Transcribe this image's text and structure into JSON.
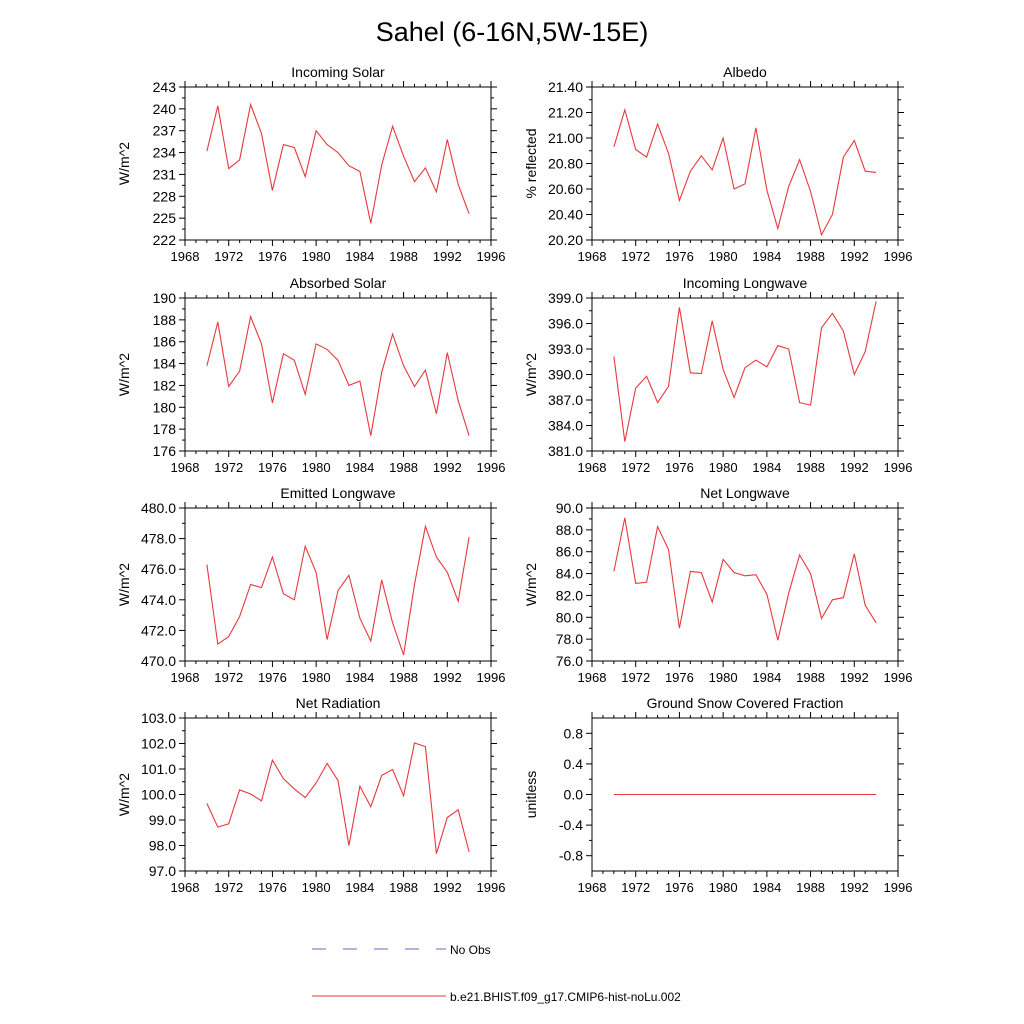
{
  "figure": {
    "title": "Sahel (6-16N,5W-15E)",
    "legend": [
      {
        "label": "No Obs",
        "color": "#6a6ab8",
        "dash": true
      },
      {
        "label": "b.e21.BHIST.f09_g17.CMIP6-hist-noLu.002",
        "color": "#e8383d",
        "dash": false
      }
    ]
  },
  "chart_data": [
    {
      "type": "line",
      "title": "Incoming Solar",
      "ylabel": "W/m^2",
      "xlim": [
        1968,
        1996
      ],
      "xticks": [
        1968,
        1972,
        1976,
        1980,
        1984,
        1988,
        1992,
        1996
      ],
      "ylim": [
        222,
        243
      ],
      "yticks": [
        222,
        225,
        228,
        231,
        234,
        237,
        240,
        243
      ],
      "ytick_labels": [
        "222",
        "225",
        "228",
        "231",
        "234",
        "237",
        "240",
        "243"
      ],
      "x": [
        1970,
        1971,
        1972,
        1973,
        1974,
        1975,
        1976,
        1977,
        1978,
        1979,
        1980,
        1981,
        1982,
        1983,
        1984,
        1985,
        1986,
        1987,
        1988,
        1989,
        1990,
        1991,
        1992,
        1993,
        1994
      ],
      "series": [
        {
          "name": "b.e21.BHIST.f09_g17.CMIP6-hist-noLu.002",
          "color": "#e8383d",
          "values": [
            234.2,
            240.4,
            231.8,
            233.0,
            240.6,
            236.6,
            228.8,
            235.1,
            234.7,
            230.7,
            237.0,
            235.1,
            234.0,
            232.2,
            231.4,
            224.3,
            232.3,
            237.6,
            233.5,
            230.0,
            231.9,
            228.6,
            235.8,
            229.6,
            225.6
          ]
        }
      ]
    },
    {
      "type": "line",
      "title": "Albedo",
      "ylabel": "% reflected",
      "xlim": [
        1968,
        1996
      ],
      "xticks": [
        1968,
        1972,
        1976,
        1980,
        1984,
        1988,
        1992,
        1996
      ],
      "ylim": [
        20.2,
        21.4
      ],
      "yticks": [
        20.2,
        20.4,
        20.6,
        20.8,
        21.0,
        21.2,
        21.4
      ],
      "ytick_labels": [
        "20.20",
        "20.40",
        "20.60",
        "20.80",
        "21.00",
        "21.20",
        "21.40"
      ],
      "x": [
        1970,
        1971,
        1972,
        1973,
        1974,
        1975,
        1976,
        1977,
        1978,
        1979,
        1980,
        1981,
        1982,
        1983,
        1984,
        1985,
        1986,
        1987,
        1988,
        1989,
        1990,
        1991,
        1992,
        1993,
        1994
      ],
      "series": [
        {
          "name": "b.e21.BHIST.f09_g17.CMIP6-hist-noLu.002",
          "color": "#e8383d",
          "values": [
            20.93,
            21.22,
            20.91,
            20.85,
            21.11,
            20.88,
            20.51,
            20.74,
            20.86,
            20.75,
            21.0,
            20.6,
            20.64,
            21.08,
            20.59,
            20.29,
            20.62,
            20.83,
            20.58,
            20.24,
            20.4,
            20.85,
            20.98,
            20.74,
            20.73
          ]
        }
      ]
    },
    {
      "type": "line",
      "title": "Absorbed Solar",
      "ylabel": "W/m^2",
      "xlim": [
        1968,
        1996
      ],
      "xticks": [
        1968,
        1972,
        1976,
        1980,
        1984,
        1988,
        1992,
        1996
      ],
      "ylim": [
        176,
        190
      ],
      "yticks": [
        176,
        178,
        180,
        182,
        184,
        186,
        188,
        190
      ],
      "ytick_labels": [
        "176",
        "178",
        "180",
        "182",
        "184",
        "186",
        "188",
        "190"
      ],
      "x": [
        1970,
        1971,
        1972,
        1973,
        1974,
        1975,
        1976,
        1977,
        1978,
        1979,
        1980,
        1981,
        1982,
        1983,
        1984,
        1985,
        1986,
        1987,
        1988,
        1989,
        1990,
        1991,
        1992,
        1993,
        1994
      ],
      "series": [
        {
          "name": "b.e21.BHIST.f09_g17.CMIP6-hist-noLu.002",
          "color": "#e8383d",
          "values": [
            183.8,
            187.8,
            181.9,
            183.3,
            188.3,
            185.8,
            180.4,
            184.9,
            184.3,
            181.2,
            185.8,
            185.3,
            184.3,
            182.0,
            182.4,
            177.4,
            183.2,
            186.7,
            183.8,
            181.9,
            183.4,
            179.4,
            185.0,
            180.6,
            177.4
          ]
        }
      ]
    },
    {
      "type": "line",
      "title": "Incoming Longwave",
      "ylabel": "W/m^2",
      "xlim": [
        1968,
        1996
      ],
      "xticks": [
        1968,
        1972,
        1976,
        1980,
        1984,
        1988,
        1992,
        1996
      ],
      "ylim": [
        381.0,
        399.0
      ],
      "yticks": [
        381,
        384,
        387,
        390,
        393,
        396,
        399
      ],
      "ytick_labels": [
        "381.0",
        "384.0",
        "387.0",
        "390.0",
        "393.0",
        "396.0",
        "399.0"
      ],
      "x": [
        1970,
        1971,
        1972,
        1973,
        1974,
        1975,
        1976,
        1977,
        1978,
        1979,
        1980,
        1981,
        1982,
        1983,
        1984,
        1985,
        1986,
        1987,
        1988,
        1989,
        1990,
        1991,
        1992,
        1993,
        1994
      ],
      "series": [
        {
          "name": "b.e21.BHIST.f09_g17.CMIP6-hist-noLu.002",
          "color": "#e8383d",
          "values": [
            392.1,
            382.1,
            388.4,
            389.8,
            386.7,
            388.6,
            397.9,
            390.2,
            390.1,
            396.3,
            390.6,
            387.3,
            390.8,
            391.7,
            390.9,
            393.4,
            393.0,
            386.7,
            386.4,
            395.5,
            397.2,
            395.1,
            390.0,
            392.7,
            398.6
          ]
        }
      ]
    },
    {
      "type": "line",
      "title": "Emitted Longwave",
      "ylabel": "W/m^2",
      "xlim": [
        1968,
        1996
      ],
      "xticks": [
        1968,
        1972,
        1976,
        1980,
        1984,
        1988,
        1992,
        1996
      ],
      "ylim": [
        470.0,
        480.0
      ],
      "yticks": [
        470,
        472,
        474,
        476,
        478,
        480
      ],
      "ytick_labels": [
        "470.0",
        "472.0",
        "474.0",
        "476.0",
        "478.0",
        "480.0"
      ],
      "x": [
        1970,
        1971,
        1972,
        1973,
        1974,
        1975,
        1976,
        1977,
        1978,
        1979,
        1980,
        1981,
        1982,
        1983,
        1984,
        1985,
        1986,
        1987,
        1988,
        1989,
        1990,
        1991,
        1992,
        1993,
        1994
      ],
      "series": [
        {
          "name": "b.e21.BHIST.f09_g17.CMIP6-hist-noLu.002",
          "color": "#e8383d",
          "values": [
            476.3,
            471.1,
            471.6,
            472.9,
            475.0,
            474.8,
            476.8,
            474.4,
            474.0,
            477.5,
            475.8,
            471.4,
            474.6,
            475.6,
            472.8,
            471.3,
            475.3,
            472.5,
            470.4,
            475.0,
            478.8,
            476.8,
            475.8,
            473.9,
            478.1
          ]
        }
      ]
    },
    {
      "type": "line",
      "title": "Net Longwave",
      "ylabel": "W/m^2",
      "xlim": [
        1968,
        1996
      ],
      "xticks": [
        1968,
        1972,
        1976,
        1980,
        1984,
        1988,
        1992,
        1996
      ],
      "ylim": [
        76.0,
        90.0
      ],
      "yticks": [
        76,
        78,
        80,
        82,
        84,
        86,
        88,
        90
      ],
      "ytick_labels": [
        "76.0",
        "78.0",
        "80.0",
        "82.0",
        "84.0",
        "86.0",
        "88.0",
        "90.0"
      ],
      "x": [
        1970,
        1971,
        1972,
        1973,
        1974,
        1975,
        1976,
        1977,
        1978,
        1979,
        1980,
        1981,
        1982,
        1983,
        1984,
        1985,
        1986,
        1987,
        1988,
        1989,
        1990,
        1991,
        1992,
        1993,
        1994
      ],
      "series": [
        {
          "name": "b.e21.BHIST.f09_g17.CMIP6-hist-noLu.002",
          "color": "#e8383d",
          "values": [
            84.2,
            89.1,
            83.1,
            83.2,
            88.3,
            86.2,
            79.0,
            84.2,
            84.1,
            81.4,
            85.3,
            84.1,
            83.8,
            83.9,
            82.1,
            77.9,
            82.2,
            85.7,
            84.0,
            79.9,
            81.6,
            81.8,
            85.8,
            81.1,
            79.5
          ]
        }
      ]
    },
    {
      "type": "line",
      "title": "Net Radiation",
      "ylabel": "W/m^2",
      "xlim": [
        1968,
        1996
      ],
      "xticks": [
        1968,
        1972,
        1976,
        1980,
        1984,
        1988,
        1992,
        1996
      ],
      "ylim": [
        97.0,
        103.0
      ],
      "yticks": [
        97,
        98,
        99,
        100,
        101,
        102,
        103
      ],
      "ytick_labels": [
        "97.0",
        "98.0",
        "99.0",
        "100.0",
        "101.0",
        "102.0",
        "103.0"
      ],
      "x": [
        1970,
        1971,
        1972,
        1973,
        1974,
        1975,
        1976,
        1977,
        1978,
        1979,
        1980,
        1981,
        1982,
        1983,
        1984,
        1985,
        1986,
        1987,
        1988,
        1989,
        1990,
        1991,
        1992,
        1993,
        1994
      ],
      "series": [
        {
          "name": "b.e21.BHIST.f09_g17.CMIP6-hist-noLu.002",
          "color": "#e8383d",
          "values": [
            99.65,
            98.72,
            98.85,
            100.18,
            100.02,
            99.75,
            101.35,
            100.62,
            100.22,
            99.88,
            100.45,
            101.22,
            100.55,
            98.0,
            100.32,
            99.52,
            100.75,
            100.98,
            99.95,
            102.02,
            101.88,
            97.68,
            99.1,
            99.4,
            97.75
          ]
        }
      ]
    },
    {
      "type": "line",
      "title": "Ground Snow Covered Fraction",
      "ylabel": "unitless",
      "xlim": [
        1968,
        1996
      ],
      "xticks": [
        1968,
        1972,
        1976,
        1980,
        1984,
        1988,
        1992,
        1996
      ],
      "ylim": [
        -1.0,
        1.0
      ],
      "yticks": [
        -0.8,
        -0.4,
        0.0,
        0.4,
        0.8
      ],
      "ytick_labels": [
        "-0.8",
        "-0.4",
        "0.0",
        "0.4",
        "0.8"
      ],
      "x": [
        1970,
        1971,
        1972,
        1973,
        1974,
        1975,
        1976,
        1977,
        1978,
        1979,
        1980,
        1981,
        1982,
        1983,
        1984,
        1985,
        1986,
        1987,
        1988,
        1989,
        1990,
        1991,
        1992,
        1993,
        1994
      ],
      "series": [
        {
          "name": "b.e21.BHIST.f09_g17.CMIP6-hist-noLu.002",
          "color": "#e8383d",
          "values": [
            0,
            0,
            0,
            0,
            0,
            0,
            0,
            0,
            0,
            0,
            0,
            0,
            0,
            0,
            0,
            0,
            0,
            0,
            0,
            0,
            0,
            0,
            0,
            0,
            0
          ]
        }
      ]
    }
  ]
}
